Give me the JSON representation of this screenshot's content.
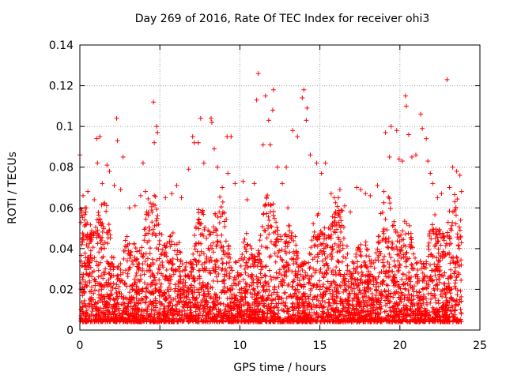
{
  "chart_data": {
    "type": "scatter",
    "title": "Day 269 of 2016, Rate Of TEC Index for receiver ohi3",
    "xlabel": "GPS time / hours",
    "ylabel": "ROTI / TECUs",
    "xlim": [
      0,
      25
    ],
    "ylim": [
      0,
      0.14
    ],
    "x_ticks": [
      0,
      5,
      10,
      15,
      20,
      25
    ],
    "x_tick_labels": [
      "0",
      "5",
      "10",
      "15",
      "20",
      "25"
    ],
    "y_ticks": [
      0,
      0.02,
      0.04,
      0.06,
      0.08,
      0.1,
      0.12,
      0.14
    ],
    "y_tick_labels": [
      "0",
      "0.02",
      "0.04",
      "0.06",
      "0.08",
      "0.1",
      "0.12",
      "0.14"
    ],
    "grid": true,
    "marker": "+",
    "marker_color": "#ff0000",
    "series": [
      {
        "name": "ROTI",
        "points": [
          [
            0.0,
            0.086
          ],
          [
            0.2,
            0.066
          ],
          [
            0.4,
            0.06
          ],
          [
            0.5,
            0.068
          ],
          [
            0.9,
            0.064
          ],
          [
            1.05,
            0.094
          ],
          [
            1.1,
            0.082
          ],
          [
            1.25,
            0.095
          ],
          [
            1.4,
            0.072
          ],
          [
            1.7,
            0.081
          ],
          [
            1.85,
            0.078
          ],
          [
            2.15,
            0.071
          ],
          [
            2.3,
            0.104
          ],
          [
            2.35,
            0.093
          ],
          [
            2.55,
            0.069
          ],
          [
            2.7,
            0.085
          ],
          [
            3.1,
            0.06
          ],
          [
            3.45,
            0.061
          ],
          [
            3.8,
            0.066
          ],
          [
            3.95,
            0.082
          ],
          [
            4.1,
            0.068
          ],
          [
            4.6,
            0.112
          ],
          [
            4.65,
            0.092
          ],
          [
            4.8,
            0.1
          ],
          [
            4.85,
            0.097
          ],
          [
            5.35,
            0.065
          ],
          [
            5.75,
            0.067
          ],
          [
            6.05,
            0.071
          ],
          [
            6.35,
            0.065
          ],
          [
            6.8,
            0.079
          ],
          [
            7.05,
            0.095
          ],
          [
            7.15,
            0.092
          ],
          [
            7.4,
            0.092
          ],
          [
            7.55,
            0.104
          ],
          [
            7.75,
            0.082
          ],
          [
            8.2,
            0.104
          ],
          [
            8.25,
            0.102
          ],
          [
            8.4,
            0.089
          ],
          [
            8.6,
            0.08
          ],
          [
            8.9,
            0.07
          ],
          [
            9.2,
            0.095
          ],
          [
            9.25,
            0.077
          ],
          [
            9.45,
            0.095
          ],
          [
            9.7,
            0.072
          ],
          [
            10.2,
            0.073
          ],
          [
            10.45,
            0.064
          ],
          [
            10.9,
            0.072
          ],
          [
            11.05,
            0.113
          ],
          [
            11.15,
            0.126
          ],
          [
            11.45,
            0.091
          ],
          [
            11.6,
            0.115
          ],
          [
            11.8,
            0.103
          ],
          [
            11.9,
            0.091
          ],
          [
            12.05,
            0.108
          ],
          [
            12.1,
            0.118
          ],
          [
            12.35,
            0.08
          ],
          [
            12.65,
            0.072
          ],
          [
            12.9,
            0.08
          ],
          [
            13.0,
            0.06
          ],
          [
            13.3,
            0.098
          ],
          [
            13.6,
            0.095
          ],
          [
            13.9,
            0.114
          ],
          [
            14.0,
            0.118
          ],
          [
            14.15,
            0.103
          ],
          [
            14.2,
            0.109
          ],
          [
            14.4,
            0.086
          ],
          [
            14.8,
            0.082
          ],
          [
            15.1,
            0.077
          ],
          [
            15.35,
            0.082
          ],
          [
            15.7,
            0.067
          ],
          [
            15.9,
            0.065
          ],
          [
            16.25,
            0.069
          ],
          [
            16.55,
            0.061
          ],
          [
            16.9,
            0.058
          ],
          [
            17.3,
            0.07
          ],
          [
            17.55,
            0.069
          ],
          [
            17.85,
            0.067
          ],
          [
            18.15,
            0.066
          ],
          [
            18.6,
            0.071
          ],
          [
            19.0,
            0.068
          ],
          [
            19.1,
            0.097
          ],
          [
            19.35,
            0.085
          ],
          [
            19.45,
            0.1
          ],
          [
            19.8,
            0.098
          ],
          [
            19.95,
            0.084
          ],
          [
            20.15,
            0.083
          ],
          [
            20.35,
            0.115
          ],
          [
            20.4,
            0.11
          ],
          [
            20.55,
            0.096
          ],
          [
            20.75,
            0.085
          ],
          [
            21.0,
            0.086
          ],
          [
            21.3,
            0.106
          ],
          [
            21.4,
            0.099
          ],
          [
            21.65,
            0.094
          ],
          [
            21.75,
            0.083
          ],
          [
            21.9,
            0.077
          ],
          [
            22.05,
            0.072
          ],
          [
            22.35,
            0.065
          ],
          [
            22.6,
            0.067
          ],
          [
            22.95,
            0.123
          ],
          [
            23.1,
            0.07
          ],
          [
            23.3,
            0.08
          ],
          [
            23.55,
            0.078
          ],
          [
            23.75,
            0.076
          ],
          [
            23.85,
            0.068
          ]
        ]
      }
    ]
  }
}
